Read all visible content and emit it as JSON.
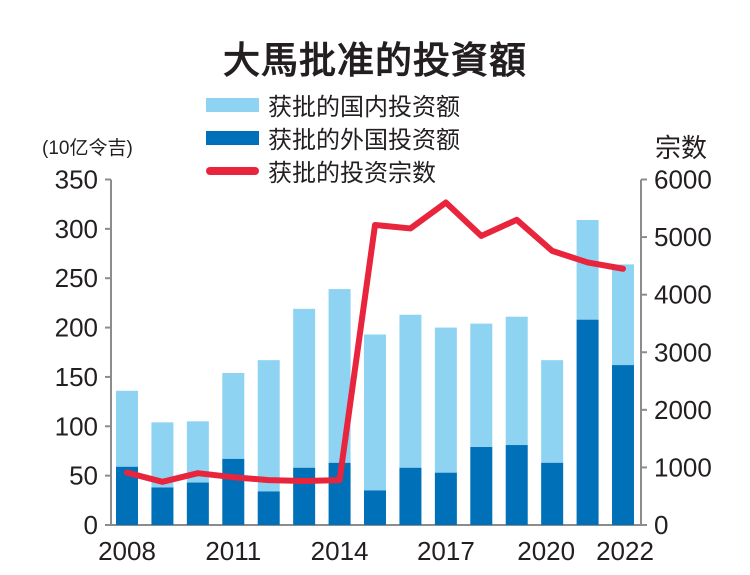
{
  "chart_data": {
    "type": "bar",
    "subtype": "stacked-bar-with-line",
    "title": "大馬批准的投資額",
    "categories": [
      "2008",
      "2009",
      "2010",
      "2011",
      "2012",
      "2013",
      "2014",
      "2015",
      "2016",
      "2017",
      "2018",
      "2019",
      "2020",
      "2021",
      "2022"
    ],
    "x_tick_labels": [
      "2008",
      "2011",
      "2014",
      "2017",
      "2020",
      "2022"
    ],
    "series": [
      {
        "name": "获批的外国投资额",
        "type": "bar",
        "axis": "left",
        "color": "#0070b8",
        "values": [
          59,
          38,
          43,
          67,
          34,
          58,
          63,
          35,
          58,
          53,
          79,
          81,
          63,
          208,
          162
        ]
      },
      {
        "name": "获批的国内投资额",
        "type": "bar",
        "axis": "left",
        "color": "#8fd3f3",
        "values": [
          77,
          66,
          62,
          87,
          133,
          161,
          176,
          158,
          155,
          147,
          125,
          130,
          104,
          101,
          102
        ]
      },
      {
        "name": "获批的投资宗数",
        "type": "line",
        "axis": "right",
        "color": "#e8253d",
        "values": [
          910,
          750,
          900,
          830,
          780,
          765,
          780,
          5210,
          5150,
          5600,
          5020,
          5300,
          4760,
          4560,
          4450
        ]
      }
    ],
    "legend": [
      "获批的国内投资额",
      "获批的外国投资额",
      "获批的投资宗数"
    ],
    "legend_placement": "top-center",
    "ylabel": "(10亿令吉)",
    "ylim": [
      0,
      350
    ],
    "yticks": [
      0,
      50,
      100,
      150,
      200,
      250,
      300,
      350
    ],
    "y2label": "宗数",
    "y2lim": [
      0,
      6000
    ],
    "y2ticks": [
      0,
      1000,
      2000,
      3000,
      4000,
      5000,
      6000
    ],
    "grid": false
  }
}
